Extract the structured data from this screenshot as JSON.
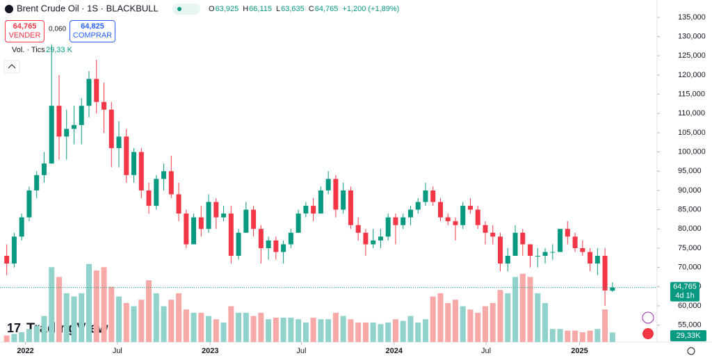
{
  "chart_data": {
    "type": "candlestick",
    "title": "Brent Crude Oil · 1S · BLACKBULL",
    "header": [
      {
        "key": "O",
        "value": "63,925"
      },
      {
        "key": "H",
        "value": "66,115"
      },
      {
        "key": "L",
        "value": "63,635"
      },
      {
        "key": "C",
        "value": "64,765"
      }
    ],
    "change": "+1,200 (+1,89%)",
    "sell": {
      "price": "64,765",
      "label": "VENDER"
    },
    "buy": {
      "price": "64,825",
      "label": "COMPRAR"
    },
    "spread": "0,060",
    "volume_title": "Vol. · Tics",
    "volume_value": "29,33 K",
    "last_price_label": "64,765",
    "countdown": "4d 1h",
    "last_volume_label": "29,33K",
    "logo": "TradingView",
    "up_color": "#089981",
    "down_color": "#f23645",
    "volume_up_color": "#92d2cc",
    "volume_down_color": "#f7a9a7",
    "ylim": [
      50.6,
      139.5
    ],
    "yticks": [
      {
        "value": 55,
        "label": "55,000"
      },
      {
        "value": 60,
        "label": "60,000"
      },
      {
        "value": 65,
        "label": "65,000"
      },
      {
        "value": 70,
        "label": "70,000"
      },
      {
        "value": 75,
        "label": "75,000"
      },
      {
        "value": 80,
        "label": "80,000"
      },
      {
        "value": 85,
        "label": "85,000"
      },
      {
        "value": 90,
        "label": "90,000"
      },
      {
        "value": 95,
        "label": "95,000"
      },
      {
        "value": 100,
        "label": "100,000"
      },
      {
        "value": 105,
        "label": "105,000"
      },
      {
        "value": 110,
        "label": "110,000"
      },
      {
        "value": 115,
        "label": "115,000"
      },
      {
        "value": 120,
        "label": "120,000"
      },
      {
        "value": 125,
        "label": "125,000"
      },
      {
        "value": 130,
        "label": "130,000"
      },
      {
        "value": 135,
        "label": "135,000"
      }
    ],
    "vlim": [
      0,
      560
    ],
    "xlim": [
      -0.9,
      86.5
    ],
    "xticks": [
      {
        "value": 2.5,
        "label": "2022"
      },
      {
        "value": 14.8,
        "label": "Jul"
      },
      {
        "value": 27.2,
        "label": "2023"
      },
      {
        "value": 39.4,
        "label": "Jul"
      },
      {
        "value": 51.8,
        "label": "2024"
      },
      {
        "value": 64.1,
        "label": "Jul"
      },
      {
        "value": 76.6,
        "label": "2025"
      }
    ],
    "ohlc": [
      [
        73,
        76,
        68,
        71
      ],
      [
        71,
        79,
        70,
        78
      ],
      [
        78,
        84,
        77,
        83
      ],
      [
        83,
        91,
        82,
        90
      ],
      [
        90,
        95,
        88,
        94
      ],
      [
        94,
        100,
        92,
        97
      ],
      [
        97,
        128,
        97,
        112
      ],
      [
        112,
        120,
        98,
        104
      ],
      [
        104,
        111,
        98,
        106
      ],
      [
        106,
        112,
        102,
        107
      ],
      [
        107,
        114,
        102,
        112
      ],
      [
        112,
        121,
        109,
        119
      ],
      [
        119,
        124,
        110,
        113
      ],
      [
        113,
        118,
        105,
        111
      ],
      [
        111,
        113,
        96,
        101
      ],
      [
        101,
        108,
        96,
        104
      ],
      [
        104,
        106,
        92,
        94
      ],
      [
        94,
        101,
        92,
        100
      ],
      [
        100,
        101,
        88,
        90
      ],
      [
        90,
        92,
        84,
        86
      ],
      [
        86,
        94,
        85,
        93
      ],
      [
        93,
        97,
        90,
        95
      ],
      [
        95,
        99,
        88,
        89
      ],
      [
        89,
        92,
        82,
        84
      ],
      [
        84,
        85,
        75,
        76
      ],
      [
        76,
        84,
        76,
        83
      ],
      [
        83,
        86,
        78,
        80
      ],
      [
        80,
        89,
        79,
        87
      ],
      [
        87,
        88,
        80,
        83
      ],
      [
        83,
        86,
        82,
        84
      ],
      [
        84,
        86,
        71,
        73
      ],
      [
        73,
        80,
        72,
        79
      ],
      [
        79,
        87,
        79,
        85
      ],
      [
        85,
        86,
        78,
        80
      ],
      [
        80,
        81,
        71,
        75
      ],
      [
        75,
        78,
        72,
        77
      ],
      [
        77,
        78,
        72,
        74
      ],
      [
        74,
        77,
        71,
        76
      ],
      [
        76,
        80,
        75,
        79
      ],
      [
        79,
        85,
        79,
        84
      ],
      [
        84,
        87,
        83,
        86
      ],
      [
        86,
        88,
        82,
        84
      ],
      [
        84,
        91,
        84,
        90
      ],
      [
        90,
        95,
        89,
        93
      ],
      [
        93,
        94,
        83,
        85
      ],
      [
        85,
        92,
        84,
        90
      ],
      [
        90,
        91,
        80,
        81
      ],
      [
        81,
        83,
        77,
        79
      ],
      [
        79,
        80,
        73,
        76
      ],
      [
        76,
        80,
        75,
        77
      ],
      [
        77,
        80,
        75,
        78
      ],
      [
        78,
        84,
        77,
        83
      ],
      [
        83,
        84,
        76,
        81
      ],
      [
        81,
        84,
        80,
        83
      ],
      [
        83,
        86,
        81,
        85
      ],
      [
        85,
        88,
        84,
        87
      ],
      [
        87,
        92,
        86,
        90
      ],
      [
        90,
        91,
        86,
        87
      ],
      [
        87,
        88,
        82,
        83
      ],
      [
        83,
        84,
        81,
        82
      ],
      [
        82,
        83,
        77,
        81
      ],
      [
        81,
        87,
        80,
        86
      ],
      [
        86,
        88,
        84,
        85
      ],
      [
        85,
        86,
        80,
        81
      ],
      [
        81,
        82,
        76,
        79
      ],
      [
        79,
        81,
        76,
        78
      ],
      [
        78,
        79,
        69,
        71
      ],
      [
        71,
        75,
        69,
        73
      ],
      [
        73,
        81,
        73,
        79
      ],
      [
        79,
        80,
        73,
        76
      ],
      [
        76,
        76,
        70,
        73
      ],
      [
        73,
        75,
        70,
        73
      ],
      [
        73,
        75,
        71,
        74
      ],
      [
        74,
        76,
        72,
        74
      ],
      [
        74,
        80,
        74,
        80
      ],
      [
        80,
        82,
        76,
        78
      ],
      [
        78,
        79,
        74,
        75
      ],
      [
        75,
        77,
        73,
        74
      ],
      [
        74,
        75,
        69,
        71
      ],
      [
        71,
        75,
        68,
        73
      ],
      [
        73,
        75,
        60,
        64
      ],
      [
        63.925,
        66.115,
        63.635,
        64.765
      ]
    ],
    "volume": [
      20,
      25,
      30,
      40,
      50,
      80,
      230,
      200,
      150,
      140,
      150,
      240,
      220,
      230,
      170,
      140,
      120,
      110,
      130,
      190,
      150,
      110,
      130,
      150,
      100,
      90,
      90,
      80,
      70,
      60,
      110,
      90,
      90,
      80,
      90,
      70,
      75,
      75,
      75,
      70,
      60,
      75,
      70,
      70,
      90,
      80,
      70,
      60,
      60,
      60,
      55,
      60,
      70,
      65,
      80,
      60,
      70,
      140,
      150,
      120,
      130,
      110,
      100,
      90,
      110,
      120,
      160,
      150,
      200,
      210,
      200,
      150,
      120,
      40,
      40,
      35,
      35,
      30,
      35,
      40,
      100,
      29.33
    ]
  }
}
